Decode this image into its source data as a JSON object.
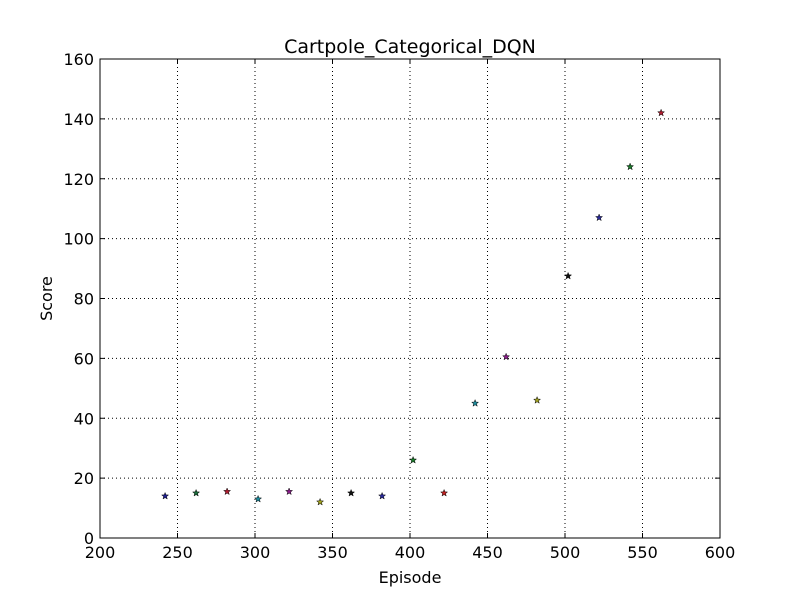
{
  "chart_data": {
    "type": "scatter",
    "title": "Cartpole_Categorical_DQN",
    "xlabel": "Episode",
    "ylabel": "Score",
    "xlim": [
      200,
      600
    ],
    "ylim": [
      0,
      160
    ],
    "xticks": [
      200,
      250,
      300,
      350,
      400,
      450,
      500,
      550,
      600
    ],
    "yticks": [
      0,
      20,
      40,
      60,
      80,
      100,
      120,
      140,
      160
    ],
    "xtick_labels": [
      "200",
      "250",
      "300",
      "350",
      "400",
      "450",
      "500",
      "550",
      "600"
    ],
    "ytick_labels": [
      "0",
      "20",
      "40",
      "60",
      "80",
      "100",
      "120",
      "140",
      "160"
    ],
    "grid": true,
    "marker": "star",
    "points": [
      {
        "x": 242,
        "y": 14,
        "color": "#1f1f8f"
      },
      {
        "x": 262,
        "y": 15,
        "color": "#1a6b3a"
      },
      {
        "x": 282,
        "y": 15.5,
        "color": "#b01c30"
      },
      {
        "x": 302,
        "y": 13,
        "color": "#1c8a9c"
      },
      {
        "x": 322,
        "y": 15.5,
        "color": "#8a1c8a"
      },
      {
        "x": 342,
        "y": 12,
        "color": "#a0a020"
      },
      {
        "x": 362,
        "y": 15,
        "color": "#111111"
      },
      {
        "x": 382,
        "y": 14,
        "color": "#2a2a9a"
      },
      {
        "x": 402,
        "y": 26,
        "color": "#1a7a2a"
      },
      {
        "x": 422,
        "y": 15,
        "color": "#c02020"
      },
      {
        "x": 442,
        "y": 45,
        "color": "#1c8a9c"
      },
      {
        "x": 462,
        "y": 60.5,
        "color": "#8a1c8a"
      },
      {
        "x": 482,
        "y": 46,
        "color": "#a0a020"
      },
      {
        "x": 502,
        "y": 87.5,
        "color": "#111111"
      },
      {
        "x": 522,
        "y": 107,
        "color": "#2a2a9a"
      },
      {
        "x": 542,
        "y": 124,
        "color": "#1a7a2a"
      },
      {
        "x": 562,
        "y": 142,
        "color": "#b01c30"
      }
    ]
  }
}
